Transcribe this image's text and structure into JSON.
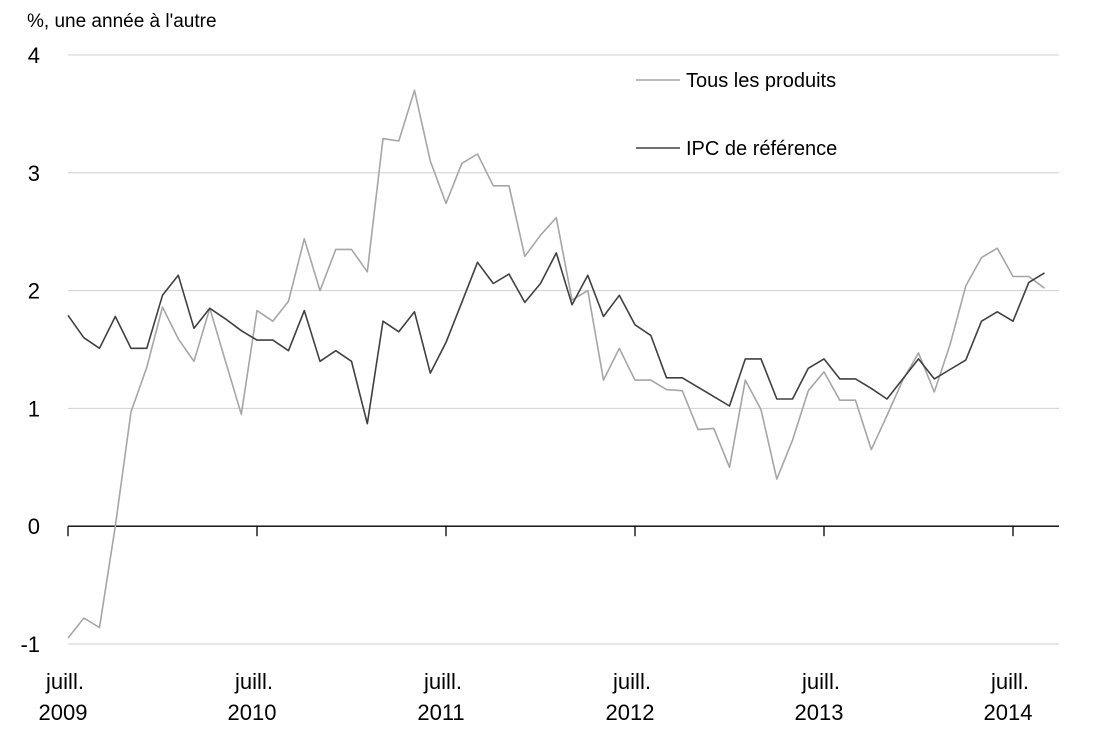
{
  "chart_data": {
    "type": "line",
    "ylabel": "%, une année à l'autre",
    "ylim": [
      -1,
      4
    ],
    "yticks": [
      "-1",
      "0",
      "1",
      "2",
      "3",
      "4"
    ],
    "grid": true,
    "legend_position": "top-right",
    "x_tick_labels": [
      {
        "month": "juill.",
        "year": "2009"
      },
      {
        "month": "juill.",
        "year": "2010"
      },
      {
        "month": "juill.",
        "year": "2011"
      },
      {
        "month": "juill.",
        "year": "2012"
      },
      {
        "month": "juill.",
        "year": "2013"
      },
      {
        "month": "juill.",
        "year": "2014"
      }
    ],
    "x": [
      "2009-07",
      "2009-08",
      "2009-09",
      "2009-10",
      "2009-11",
      "2009-12",
      "2010-01",
      "2010-02",
      "2010-03",
      "2010-04",
      "2010-05",
      "2010-06",
      "2010-07",
      "2010-08",
      "2010-09",
      "2010-10",
      "2010-11",
      "2010-12",
      "2011-01",
      "2011-02",
      "2011-03",
      "2011-04",
      "2011-05",
      "2011-06",
      "2011-07",
      "2011-08",
      "2011-09",
      "2011-10",
      "2011-11",
      "2011-12",
      "2012-01",
      "2012-02",
      "2012-03",
      "2012-04",
      "2012-05",
      "2012-06",
      "2012-07",
      "2012-08",
      "2012-09",
      "2012-10",
      "2012-11",
      "2012-12",
      "2013-01",
      "2013-02",
      "2013-03",
      "2013-04",
      "2013-05",
      "2013-06",
      "2013-07",
      "2013-08",
      "2013-09",
      "2013-10",
      "2013-11",
      "2013-12",
      "2014-01",
      "2014-02",
      "2014-03",
      "2014-04",
      "2014-05",
      "2014-06",
      "2014-07",
      "2014-08",
      "2014-09"
    ],
    "series": [
      {
        "name": "Tous les produits",
        "color": "#a6a6a6",
        "values": [
          -0.95,
          -0.78,
          -0.86,
          0.0,
          0.97,
          1.35,
          1.86,
          1.59,
          1.4,
          1.85,
          1.4,
          0.95,
          1.83,
          1.74,
          1.91,
          2.44,
          2.0,
          2.35,
          2.35,
          2.16,
          3.29,
          3.27,
          3.7,
          3.1,
          2.74,
          3.08,
          3.16,
          2.89,
          2.89,
          2.29,
          2.47,
          2.62,
          1.92,
          2.0,
          1.24,
          1.51,
          1.24,
          1.24,
          1.16,
          1.15,
          0.82,
          0.83,
          0.5,
          1.24,
          0.99,
          0.4,
          0.73,
          1.15,
          1.31,
          1.07,
          1.07,
          0.65,
          0.94,
          1.24,
          1.47,
          1.14,
          1.54,
          2.04,
          2.28,
          2.36,
          2.12,
          2.12,
          2.02
        ]
      },
      {
        "name": "IPC de référence",
        "color": "#404040",
        "values": [
          1.79,
          1.6,
          1.51,
          1.78,
          1.51,
          1.51,
          1.96,
          2.13,
          1.68,
          1.85,
          1.76,
          1.66,
          1.58,
          1.58,
          1.49,
          1.83,
          1.4,
          1.49,
          1.4,
          0.87,
          1.74,
          1.65,
          1.82,
          1.3,
          1.56,
          1.9,
          2.24,
          2.06,
          2.14,
          1.9,
          2.06,
          2.32,
          1.88,
          2.13,
          1.78,
          1.96,
          1.71,
          1.62,
          1.26,
          1.26,
          1.18,
          1.1,
          1.02,
          1.42,
          1.42,
          1.08,
          1.08,
          1.34,
          1.42,
          1.25,
          1.25,
          1.17,
          1.08,
          1.25,
          1.42,
          1.25,
          1.33,
          1.41,
          1.74,
          1.82,
          1.74,
          2.07,
          2.15
        ]
      }
    ]
  }
}
